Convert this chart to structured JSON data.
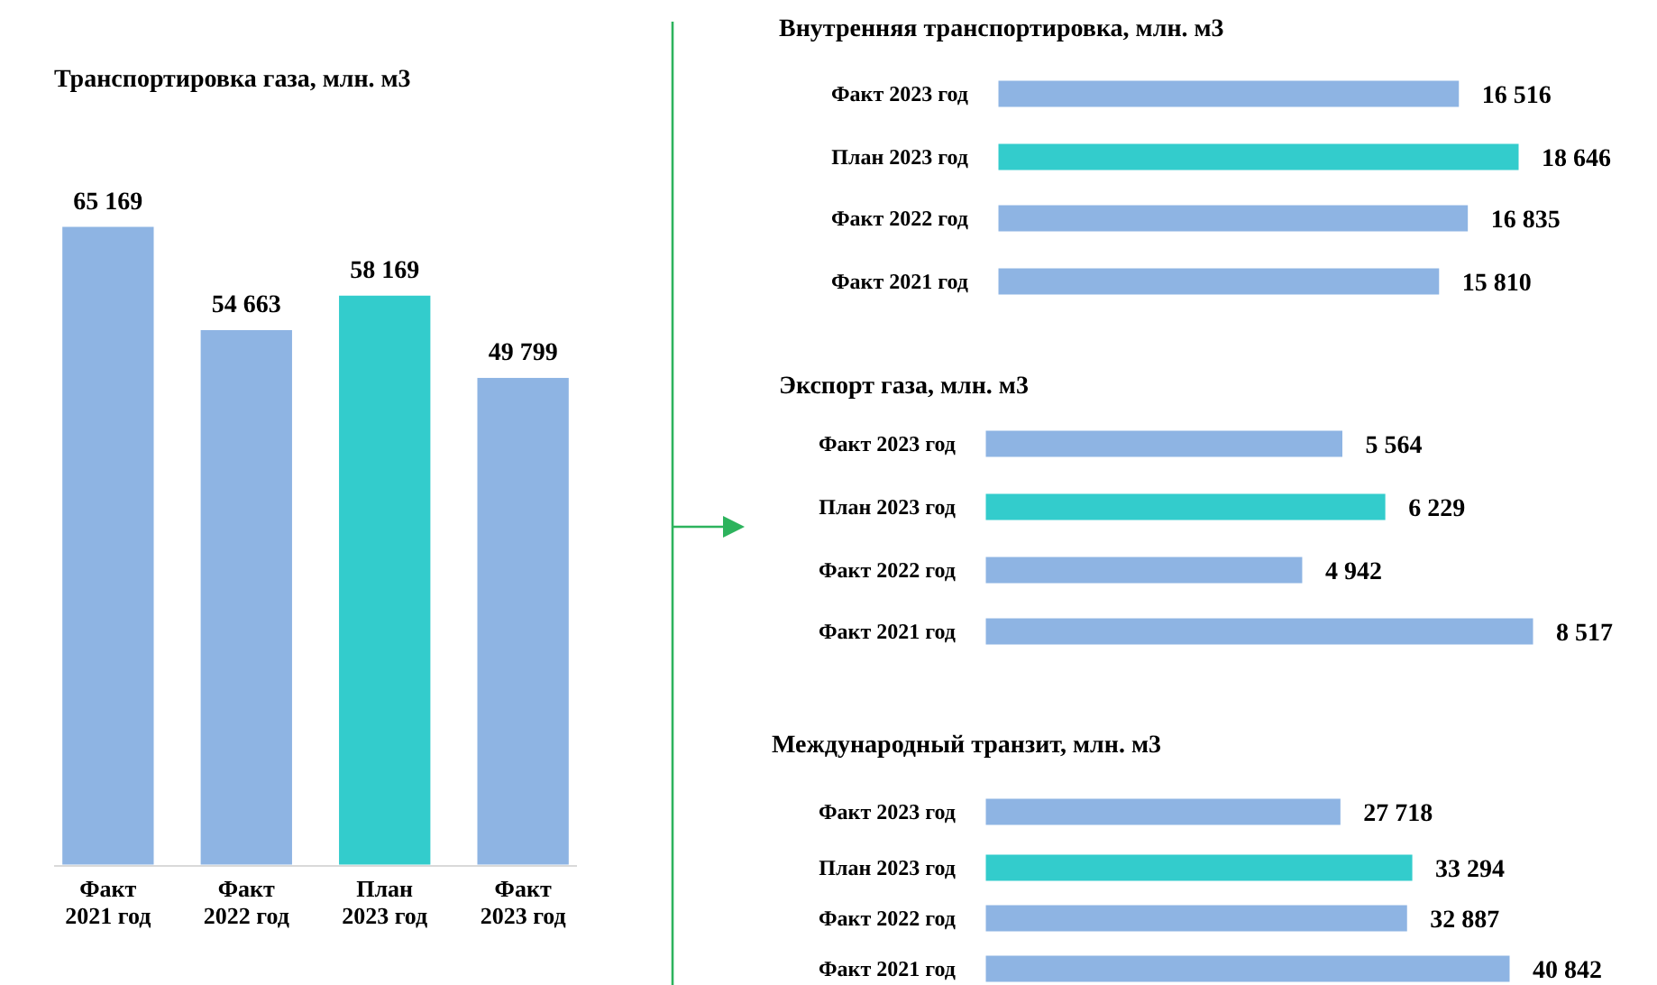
{
  "chart_data": [
    {
      "type": "bar",
      "title": "Транспортировка газа, млн. м3",
      "categories": [
        "Факт 2021 год",
        "Факт 2022 год",
        "План 2023 год",
        "Факт 2023 год"
      ],
      "values": [
        65169,
        54663,
        58169,
        49799
      ],
      "colors": [
        "#8eb4e3",
        "#8eb4e3",
        "#33cccc",
        "#8eb4e3"
      ],
      "data_labels": true
    },
    {
      "type": "bar",
      "orientation": "horizontal",
      "title": "Внутренняя транспортировка, млн. м3",
      "categories": [
        "Факт 2023 год",
        "План 2023 год",
        "Факт 2022 год",
        "Факт 2021 год"
      ],
      "values": [
        16516,
        18646,
        16835,
        15810
      ],
      "colors": [
        "#8eb4e3",
        "#33cccc",
        "#8eb4e3",
        "#8eb4e3"
      ],
      "data_labels": true
    },
    {
      "type": "bar",
      "orientation": "horizontal",
      "title": "Экспорт газа, млн. м3",
      "categories": [
        "Факт 2023 год",
        "План 2023 год",
        "Факт 2022 год",
        "Факт 2021 год"
      ],
      "values": [
        5564,
        6229,
        4942,
        8517
      ],
      "colors": [
        "#8eb4e3",
        "#33cccc",
        "#8eb4e3",
        "#8eb4e3"
      ],
      "data_labels": true
    },
    {
      "type": "bar",
      "orientation": "horizontal",
      "title": "Международный транзит, млн. м3",
      "categories": [
        "Факт 2023 год",
        "План 2023 год",
        "Факт 2022 год",
        "Факт 2021 год"
      ],
      "values": [
        27718,
        33294,
        32887,
        40842
      ],
      "colors": [
        "#8eb4e3",
        "#33cccc",
        "#8eb4e3",
        "#8eb4e3"
      ],
      "data_labels": true
    }
  ]
}
